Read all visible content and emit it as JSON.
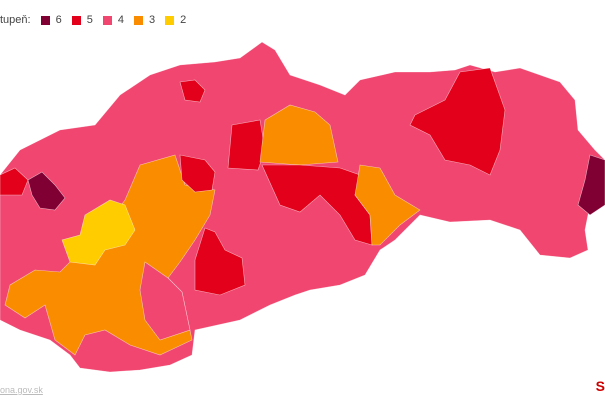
{
  "legend": {
    "title": "tupeň:",
    "items": [
      {
        "label": "6",
        "color": "#800033"
      },
      {
        "label": "5",
        "color": "#e2001a"
      },
      {
        "label": "4",
        "color": "#f0466f"
      },
      {
        "label": "3",
        "color": "#fa8c00"
      },
      {
        "label": "2",
        "color": "#ffcc00"
      }
    ]
  },
  "source": "ona.gov.sk",
  "logo": "S"
}
